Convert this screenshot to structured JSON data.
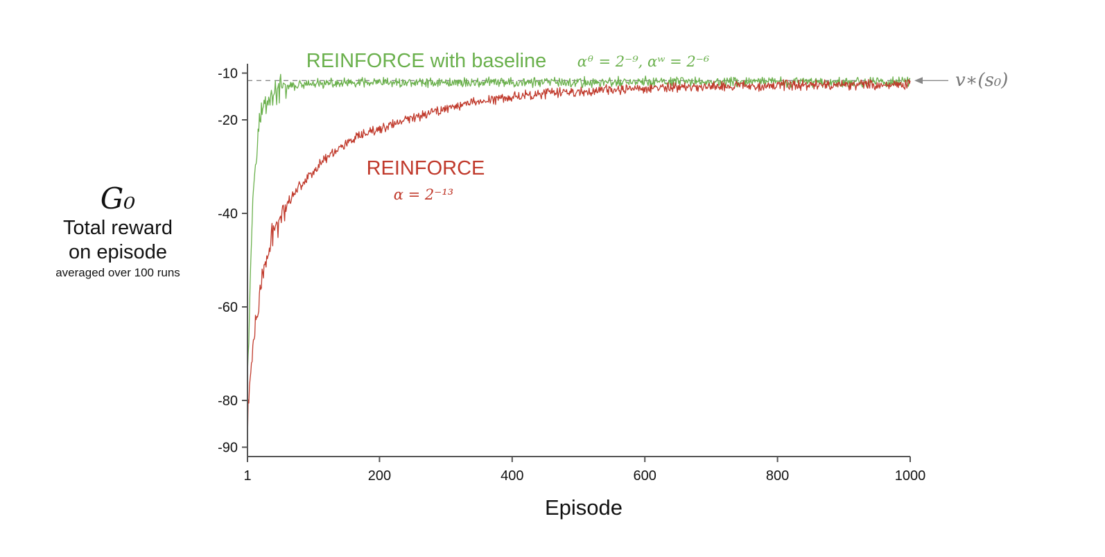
{
  "chart_data": {
    "type": "line",
    "xlabel": "Episode",
    "ylabel": {
      "symbol": "G₀",
      "line1": "Total reward",
      "line2": "on episode",
      "note": "averaged over 100 runs"
    },
    "xlim": [
      1,
      1000
    ],
    "ylim": [
      -92,
      -8
    ],
    "x_ticks": [
      {
        "value": 1,
        "label": "1"
      },
      {
        "value": 200,
        "label": "200"
      },
      {
        "value": 400,
        "label": "400"
      },
      {
        "value": 600,
        "label": "600"
      },
      {
        "value": 800,
        "label": "800"
      },
      {
        "value": 1000,
        "label": "1000"
      }
    ],
    "y_ticks": [
      {
        "value": -10,
        "label": "-10"
      },
      {
        "value": -20,
        "label": "-20"
      },
      {
        "value": -40,
        "label": "-40"
      },
      {
        "value": -60,
        "label": "-60"
      },
      {
        "value": -80,
        "label": "-80"
      },
      {
        "value": -90,
        "label": "-90"
      }
    ],
    "grid": false,
    "reference_line": {
      "value": -11.6,
      "label": "v∗(s₀)",
      "color": "#888888"
    },
    "series": [
      {
        "name": "REINFORCE with baseline",
        "params": "αᶿ = 2⁻⁹,  αʷ = 2⁻⁶",
        "color": "#6ab04c",
        "x": [
          1,
          3,
          5,
          7,
          9,
          11,
          13,
          15,
          17,
          20,
          23,
          26,
          30,
          35,
          40,
          45,
          50,
          55,
          60,
          70,
          80,
          90,
          100,
          120,
          140,
          160,
          180,
          200,
          250,
          300,
          350,
          400,
          450,
          500,
          600,
          700,
          800,
          900,
          1000
        ],
        "y": [
          -72,
          -65,
          -55,
          -45,
          -38,
          -32,
          -28,
          -25,
          -22,
          -20,
          -18,
          -17,
          -16,
          -15,
          -14.5,
          -14,
          -13.5,
          -13.2,
          -13,
          -12.8,
          -12.6,
          -12.5,
          -12.4,
          -12.3,
          -12.2,
          -12.2,
          -12.1,
          -12.1,
          -12.0,
          -12.0,
          -12.0,
          -12.0,
          -12.0,
          -12.0,
          -11.9,
          -11.9,
          -11.9,
          -11.9,
          -11.9
        ],
        "noise": 1.3
      },
      {
        "name": "REINFORCE",
        "params": "α = 2⁻¹³",
        "color": "#c0392b",
        "x": [
          1,
          2,
          5,
          10,
          15,
          20,
          25,
          30,
          35,
          40,
          50,
          60,
          70,
          80,
          100,
          120,
          150,
          180,
          200,
          250,
          300,
          350,
          400,
          450,
          500,
          550,
          600,
          700,
          800,
          900,
          1000
        ],
        "y": [
          -90,
          -80,
          -76,
          -68,
          -62,
          -58,
          -52,
          -50,
          -47,
          -44,
          -41,
          -38,
          -36,
          -34,
          -31,
          -28,
          -25,
          -23,
          -22,
          -19.5,
          -17.5,
          -16,
          -15,
          -14.3,
          -14,
          -13.6,
          -13.3,
          -12.8,
          -12.6,
          -12.5,
          -12.5
        ],
        "noise": 1.3
      }
    ]
  }
}
